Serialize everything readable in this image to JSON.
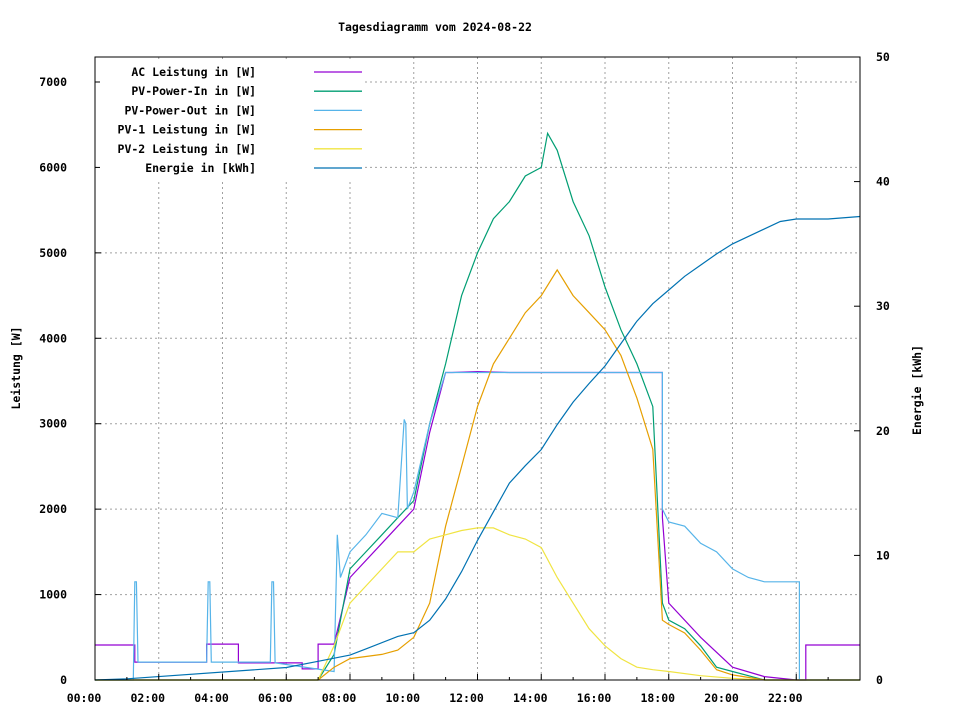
{
  "chart_data": {
    "type": "line",
    "title": "Tagesdiagramm vom 2024-08-22",
    "ylabel": "Leistung [W]",
    "y2label": "Energie [kWh]",
    "xlim": [
      0,
      24
    ],
    "ylim": [
      0,
      7300
    ],
    "y2lim": [
      0,
      50
    ],
    "grid": true,
    "legend_position": "top-left",
    "x_ticks": [
      "00:00",
      "02:00",
      "04:00",
      "06:00",
      "08:00",
      "10:00",
      "12:00",
      "14:00",
      "16:00",
      "18:00",
      "20:00",
      "22:00"
    ],
    "y_ticks": [
      "0",
      "1000",
      "2000",
      "3000",
      "4000",
      "5000",
      "6000",
      "7000"
    ],
    "y2_ticks": [
      "0",
      "10",
      "20",
      "30",
      "40",
      "50"
    ],
    "series": [
      {
        "name": "AC Leistung in [W]",
        "color": "#9400d3",
        "axis": "y",
        "x": [
          0,
          1.25,
          1.25,
          3.5,
          3.5,
          4.5,
          4.5,
          6.5,
          6.5,
          7.0,
          7.0,
          7.5,
          8,
          9,
          9.5,
          10,
          10.5,
          11,
          11.2,
          12,
          13,
          14,
          15,
          16,
          17,
          17.8,
          17.8,
          18,
          19,
          20,
          21,
          22,
          22.3,
          22.3,
          23,
          23.5,
          23.5,
          24
        ],
        "y": [
          410,
          410,
          210,
          210,
          420,
          420,
          200,
          200,
          130,
          130,
          420,
          420,
          1200,
          1600,
          1800,
          2000,
          2900,
          3600,
          3600,
          3610,
          3600,
          3600,
          3600,
          3600,
          3600,
          3600,
          1900,
          900,
          500,
          150,
          40,
          0,
          0,
          410,
          410,
          410,
          410,
          410
        ]
      },
      {
        "name": "PV-Power-In in [W]",
        "color": "#009e73",
        "axis": "y",
        "x": [
          0,
          7,
          7.5,
          8,
          8.5,
          9,
          9.5,
          10,
          10.5,
          11,
          11.5,
          12,
          12.5,
          13,
          13.5,
          14,
          14.2,
          14.5,
          15,
          15.5,
          16,
          16.5,
          17,
          17.5,
          17.8,
          18,
          18.5,
          19,
          19.5,
          20,
          20.5,
          21,
          24
        ],
        "y": [
          0,
          0,
          300,
          1300,
          1500,
          1700,
          1900,
          2100,
          3000,
          3700,
          4500,
          5000,
          5400,
          5600,
          5900,
          6000,
          6400,
          6200,
          5600,
          5200,
          4600,
          4100,
          3700,
          3200,
          900,
          700,
          600,
          400,
          150,
          100,
          50,
          0,
          0
        ]
      },
      {
        "name": "PV-Power-Out in [W]",
        "color": "#56b4e9",
        "axis": "y",
        "x": [
          0,
          1.2,
          1.25,
          1.3,
          1.35,
          3.5,
          3.55,
          3.6,
          3.65,
          5.5,
          5.55,
          5.6,
          5.65,
          7.5,
          7.6,
          7.7,
          8,
          8.5,
          9,
          9.5,
          9.7,
          9.75,
          9.8,
          10,
          10.5,
          11,
          11.2,
          17.8,
          17.8,
          18,
          18.5,
          19,
          19.5,
          20,
          20.5,
          21,
          22,
          22.1,
          22.1,
          24
        ],
        "y": [
          0,
          0,
          1150,
          1150,
          210,
          210,
          1150,
          1150,
          210,
          210,
          1150,
          1150,
          200,
          100,
          1700,
          1200,
          1500,
          1700,
          1950,
          1900,
          3050,
          3000,
          2000,
          2200,
          3000,
          3600,
          3600,
          3600,
          2000,
          1850,
          1800,
          1600,
          1500,
          1300,
          1200,
          1150,
          1150,
          1150,
          0,
          0
        ]
      },
      {
        "name": "PV-1 Leistung in [W]",
        "color": "#e69f00",
        "axis": "y",
        "x": [
          0,
          7,
          7.5,
          8,
          9,
          9.5,
          10,
          10.5,
          11,
          11.5,
          12,
          12.5,
          13,
          13.5,
          14,
          14.5,
          15,
          15.5,
          16,
          16.5,
          17,
          17.5,
          17.8,
          18,
          18.5,
          19,
          19.5,
          20,
          21,
          24
        ],
        "y": [
          0,
          0,
          150,
          250,
          300,
          350,
          500,
          900,
          1800,
          2500,
          3200,
          3700,
          4000,
          4300,
          4500,
          4800,
          4500,
          4300,
          4100,
          3800,
          3300,
          2700,
          700,
          650,
          550,
          350,
          120,
          60,
          0,
          0
        ]
      },
      {
        "name": "PV-2 Leistung in [W]",
        "color": "#f0e442",
        "axis": "y",
        "x": [
          0,
          7,
          7.5,
          8,
          8.5,
          9,
          9.5,
          10,
          10.5,
          11,
          11.5,
          12,
          12.5,
          13,
          13.5,
          14,
          14.5,
          15,
          15.5,
          16,
          16.5,
          17,
          17.5,
          18,
          19,
          20,
          21,
          24
        ],
        "y": [
          0,
          0,
          400,
          900,
          1100,
          1300,
          1500,
          1500,
          1650,
          1700,
          1750,
          1780,
          1780,
          1700,
          1650,
          1550,
          1200,
          900,
          600,
          400,
          250,
          150,
          120,
          100,
          50,
          20,
          0,
          0
        ]
      },
      {
        "name": "Energie in [kWh]",
        "color": "#0072b2",
        "axis": "y2",
        "x": [
          0,
          1,
          6,
          7,
          8,
          8.5,
          9.5,
          10,
          10.5,
          11,
          11.5,
          12,
          12.5,
          13,
          13.5,
          14,
          14.5,
          15,
          15.5,
          16,
          16.5,
          17,
          17.5,
          18,
          18.5,
          19,
          19.5,
          20,
          20.5,
          21,
          21.5,
          22,
          23,
          24
        ],
        "y": [
          0,
          0.1,
          1,
          1.5,
          2,
          2.5,
          3.5,
          3.8,
          4.8,
          6.5,
          8.7,
          11.2,
          13.5,
          15.8,
          17.2,
          18.5,
          20.5,
          22.3,
          23.8,
          25.2,
          27,
          28.8,
          30.2,
          31.3,
          32.4,
          33.3,
          34.2,
          35,
          35.6,
          36.2,
          36.8,
          37,
          37,
          37.2
        ]
      }
    ]
  }
}
